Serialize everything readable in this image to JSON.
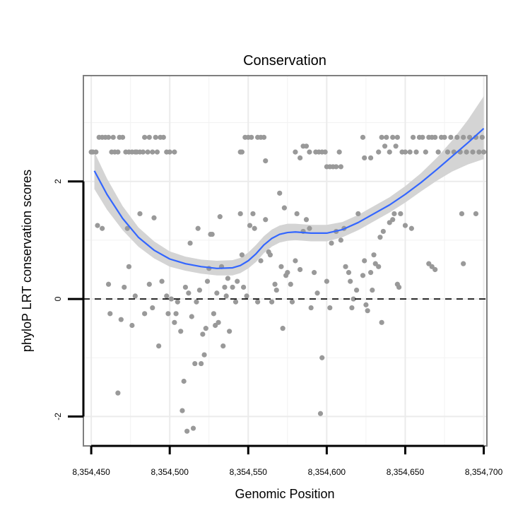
{
  "chart_data": {
    "type": "scatter",
    "title": "Conservation",
    "xlabel": "Genomic Position",
    "ylabel": "phyloP LRT conservation scores",
    "xlim": [
      8354445,
      8354702
    ],
    "ylim": [
      -2.5,
      3.8
    ],
    "x_ticks": [
      8354450,
      8354500,
      8354550,
      8354600,
      8354650,
      8354700
    ],
    "x_tick_labels": [
      "8,354,450",
      "8,354,500",
      "8,354,550",
      "8,354,600",
      "8,354,650",
      "8,354,700"
    ],
    "y_ticks": [
      -2,
      0,
      2
    ],
    "y_tick_labels": [
      "-2",
      "0",
      "2"
    ],
    "x_minor_ticks": [
      8354475,
      8354525,
      8354575,
      8354625,
      8354675
    ],
    "y_minor_ticks": [
      -1,
      1,
      3
    ],
    "reference_line": {
      "y": 0,
      "style": "dashed",
      "color": "#000000"
    },
    "point_color": "#999999",
    "smooth_color": "#3366ff",
    "ribbon_color": "#d4d4d4",
    "points": [
      [
        8354450,
        2.5
      ],
      [
        8354451,
        2.5
      ],
      [
        8354453,
        2.5
      ],
      [
        8354455,
        2.75
      ],
      [
        8354457,
        2.75
      ],
      [
        8354459,
        2.75
      ],
      [
        8354461,
        2.75
      ],
      [
        8354463,
        2.5
      ],
      [
        8354464,
        2.75
      ],
      [
        8354465,
        2.5
      ],
      [
        8354467,
        2.5
      ],
      [
        8354468,
        2.75
      ],
      [
        8354470,
        2.75
      ],
      [
        8354472,
        2.5
      ],
      [
        8354474,
        2.5
      ],
      [
        8354476,
        2.5
      ],
      [
        8354478,
        2.5
      ],
      [
        8354479,
        2.5
      ],
      [
        8354481,
        2.5
      ],
      [
        8354483,
        2.5
      ],
      [
        8354484,
        2.75
      ],
      [
        8354486,
        2.5
      ],
      [
        8354487,
        2.75
      ],
      [
        8354489,
        2.5
      ],
      [
        8354491,
        2.75
      ],
      [
        8354492,
        2.5
      ],
      [
        8354494,
        2.75
      ],
      [
        8354496,
        2.75
      ],
      [
        8354498,
        2.5
      ],
      [
        8354500,
        2.5
      ],
      [
        8354503,
        2.5
      ],
      [
        8354545,
        2.5
      ],
      [
        8354546,
        2.5
      ],
      [
        8354548,
        2.75
      ],
      [
        8354550,
        2.75
      ],
      [
        8354552,
        2.75
      ],
      [
        8354556,
        2.75
      ],
      [
        8354558,
        2.75
      ],
      [
        8354560,
        2.75
      ],
      [
        8354561,
        2.35
      ],
      [
        8354580,
        2.5
      ],
      [
        8354583,
        2.4
      ],
      [
        8354585,
        2.6
      ],
      [
        8354587,
        2.6
      ],
      [
        8354589,
        2.5
      ],
      [
        8354593,
        2.5
      ],
      [
        8354595,
        2.5
      ],
      [
        8354597,
        2.5
      ],
      [
        8354599,
        2.5
      ],
      [
        8354600,
        2.25
      ],
      [
        8354602,
        2.25
      ],
      [
        8354604,
        2.25
      ],
      [
        8354606,
        2.25
      ],
      [
        8354608,
        2.5
      ],
      [
        8354609,
        2.25
      ],
      [
        8354623,
        2.75
      ],
      [
        8354624,
        2.4
      ],
      [
        8354628,
        2.4
      ],
      [
        8354633,
        2.5
      ],
      [
        8354635,
        2.75
      ],
      [
        8354637,
        2.6
      ],
      [
        8354638,
        2.75
      ],
      [
        8354640,
        2.5
      ],
      [
        8354642,
        2.75
      ],
      [
        8354644,
        2.6
      ],
      [
        8354645,
        2.75
      ],
      [
        8354648,
        2.5
      ],
      [
        8354650,
        2.5
      ],
      [
        8354653,
        2.5
      ],
      [
        8354655,
        2.75
      ],
      [
        8354657,
        2.5
      ],
      [
        8354659,
        2.75
      ],
      [
        8354661,
        2.75
      ],
      [
        8354663,
        2.5
      ],
      [
        8354665,
        2.75
      ],
      [
        8354667,
        2.75
      ],
      [
        8354669,
        2.75
      ],
      [
        8354671,
        2.5
      ],
      [
        8354673,
        2.75
      ],
      [
        8354675,
        2.75
      ],
      [
        8354677,
        2.5
      ],
      [
        8354679,
        2.75
      ],
      [
        8354681,
        2.5
      ],
      [
        8354683,
        2.75
      ],
      [
        8354685,
        2.5
      ],
      [
        8354687,
        2.75
      ],
      [
        8354689,
        2.5
      ],
      [
        8354691,
        2.75
      ],
      [
        8354693,
        2.5
      ],
      [
        8354695,
        2.75
      ],
      [
        8354697,
        2.5
      ],
      [
        8354699,
        2.75
      ],
      [
        8354700,
        2.5
      ],
      [
        8354454,
        1.25
      ],
      [
        8354457,
        1.2
      ],
      [
        8354461,
        0.25
      ],
      [
        8354462,
        -0.25
      ],
      [
        8354467,
        -1.6
      ],
      [
        8354469,
        -0.35
      ],
      [
        8354471,
        0.2
      ],
      [
        8354473,
        1.2
      ],
      [
        8354474,
        0.55
      ],
      [
        8354476,
        -0.45
      ],
      [
        8354478,
        0.05
      ],
      [
        8354481,
        1.45
      ],
      [
        8354484,
        -0.25
      ],
      [
        8354487,
        0.25
      ],
      [
        8354489,
        -0.15
      ],
      [
        8354490,
        1.38
      ],
      [
        8354493,
        -0.8
      ],
      [
        8354495,
        0.3
      ],
      [
        8354498,
        0.05
      ],
      [
        8354499,
        -0.25
      ],
      [
        8354501,
        0
      ],
      [
        8354503,
        -0.4
      ],
      [
        8354504,
        -0.25
      ],
      [
        8354505,
        -0.05
      ],
      [
        8354507,
        -0.55
      ],
      [
        8354508,
        -1.9
      ],
      [
        8354509,
        -1.4
      ],
      [
        8354510,
        0.2
      ],
      [
        8354511,
        -2.25
      ],
      [
        8354512,
        0.1
      ],
      [
        8354513,
        0.95
      ],
      [
        8354514,
        -0.3
      ],
      [
        8354515,
        -2.2
      ],
      [
        8354516,
        -1.1
      ],
      [
        8354517,
        -0.05
      ],
      [
        8354518,
        1.2
      ],
      [
        8354519,
        0.15
      ],
      [
        8354520,
        -1.1
      ],
      [
        8354521,
        -0.6
      ],
      [
        8354522,
        -0.95
      ],
      [
        8354523,
        -0.5
      ],
      [
        8354524,
        0.3
      ],
      [
        8354525,
        0.52
      ],
      [
        8354526,
        1.1
      ],
      [
        8354527,
        1.1
      ],
      [
        8354528,
        -0.25
      ],
      [
        8354529,
        -0.45
      ],
      [
        8354530,
        0.1
      ],
      [
        8354531,
        -0.4
      ],
      [
        8354532,
        1.4
      ],
      [
        8354533,
        0.55
      ],
      [
        8354534,
        -0.8
      ],
      [
        8354535,
        0.2
      ],
      [
        8354536,
        0.05
      ],
      [
        8354537,
        0.35
      ],
      [
        8354538,
        -0.55
      ],
      [
        8354540,
        0.2
      ],
      [
        8354542,
        -0.05
      ],
      [
        8354543,
        0.3
      ],
      [
        8354545,
        1.45
      ],
      [
        8354546,
        0.75
      ],
      [
        8354547,
        0.2
      ],
      [
        8354549,
        0.05
      ],
      [
        8354551,
        1.25
      ],
      [
        8354553,
        1.45
      ],
      [
        8354554,
        1.2
      ],
      [
        8354556,
        -0.05
      ],
      [
        8354558,
        0.65
      ],
      [
        8354561,
        1.35
      ],
      [
        8354563,
        0.8
      ],
      [
        8354564,
        0.75
      ],
      [
        8354565,
        -0.05
      ],
      [
        8354567,
        0.25
      ],
      [
        8354568,
        0.15
      ],
      [
        8354570,
        1.8
      ],
      [
        8354571,
        0.55
      ],
      [
        8354572,
        -0.5
      ],
      [
        8354573,
        1.55
      ],
      [
        8354574,
        0.4
      ],
      [
        8354575,
        0.45
      ],
      [
        8354577,
        0.25
      ],
      [
        8354578,
        -0.05
      ],
      [
        8354580,
        0.65
      ],
      [
        8354581,
        1.45
      ],
      [
        8354583,
        0.5
      ],
      [
        8354585,
        1.15
      ],
      [
        8354587,
        1.35
      ],
      [
        8354589,
        1.2
      ],
      [
        8354590,
        -0.15
      ],
      [
        8354592,
        0.45
      ],
      [
        8354594,
        0.1
      ],
      [
        8354596,
        -1.95
      ],
      [
        8354597,
        -1.0
      ],
      [
        8354600,
        0.3
      ],
      [
        8354602,
        -0.15
      ],
      [
        8354603,
        0.95
      ],
      [
        8354606,
        1.15
      ],
      [
        8354609,
        1.0
      ],
      [
        8354611,
        1.2
      ],
      [
        8354612,
        0.55
      ],
      [
        8354614,
        0.45
      ],
      [
        8354615,
        0.3
      ],
      [
        8354616,
        -0.15
      ],
      [
        8354617,
        0
      ],
      [
        8354619,
        0.15
      ],
      [
        8354620,
        1.45
      ],
      [
        8354623,
        0.4
      ],
      [
        8354624,
        0.65
      ],
      [
        8354625,
        -0.1
      ],
      [
        8354626,
        -0.2
      ],
      [
        8354628,
        0.45
      ],
      [
        8354629,
        0.15
      ],
      [
        8354630,
        0.75
      ],
      [
        8354631,
        0.6
      ],
      [
        8354633,
        0.55
      ],
      [
        8354634,
        1.05
      ],
      [
        8354635,
        -0.4
      ],
      [
        8354636,
        1.15
      ],
      [
        8354640,
        1.3
      ],
      [
        8354642,
        1.35
      ],
      [
        8354643,
        1.45
      ],
      [
        8354645,
        0.25
      ],
      [
        8354646,
        0.2
      ],
      [
        8354647,
        1.45
      ],
      [
        8354650,
        1.25
      ],
      [
        8354654,
        1.2
      ],
      [
        8354665,
        0.6
      ],
      [
        8354667,
        0.55
      ],
      [
        8354669,
        0.5
      ],
      [
        8354686,
        1.45
      ],
      [
        8354687,
        0.6
      ],
      [
        8354695,
        1.45
      ]
    ],
    "smooth_curve": [
      [
        8354452,
        2.18
      ],
      [
        8354460,
        1.78
      ],
      [
        8354470,
        1.37
      ],
      [
        8354480,
        1.05
      ],
      [
        8354490,
        0.83
      ],
      [
        8354500,
        0.68
      ],
      [
        8354510,
        0.6
      ],
      [
        8354520,
        0.55
      ],
      [
        8354530,
        0.52
      ],
      [
        8354540,
        0.53
      ],
      [
        8354545,
        0.57
      ],
      [
        8354550,
        0.65
      ],
      [
        8354555,
        0.77
      ],
      [
        8354560,
        0.92
      ],
      [
        8354565,
        1.03
      ],
      [
        8354570,
        1.1
      ],
      [
        8354575,
        1.13
      ],
      [
        8354580,
        1.14
      ],
      [
        8354590,
        1.12
      ],
      [
        8354600,
        1.12
      ],
      [
        8354610,
        1.18
      ],
      [
        8354620,
        1.3
      ],
      [
        8354630,
        1.45
      ],
      [
        8354640,
        1.6
      ],
      [
        8354650,
        1.78
      ],
      [
        8354660,
        1.98
      ],
      [
        8354670,
        2.2
      ],
      [
        8354680,
        2.43
      ],
      [
        8354690,
        2.66
      ],
      [
        8354700,
        2.9
      ]
    ],
    "ribbon_upper": [
      [
        8354452,
        2.5
      ],
      [
        8354460,
        2.05
      ],
      [
        8354470,
        1.58
      ],
      [
        8354480,
        1.22
      ],
      [
        8354490,
        0.98
      ],
      [
        8354500,
        0.81
      ],
      [
        8354510,
        0.72
      ],
      [
        8354520,
        0.67
      ],
      [
        8354530,
        0.65
      ],
      [
        8354540,
        0.66
      ],
      [
        8354545,
        0.7
      ],
      [
        8354550,
        0.79
      ],
      [
        8354555,
        0.92
      ],
      [
        8354560,
        1.07
      ],
      [
        8354565,
        1.18
      ],
      [
        8354570,
        1.25
      ],
      [
        8354575,
        1.28
      ],
      [
        8354580,
        1.28
      ],
      [
        8354590,
        1.26
      ],
      [
        8354600,
        1.26
      ],
      [
        8354610,
        1.31
      ],
      [
        8354620,
        1.43
      ],
      [
        8354630,
        1.58
      ],
      [
        8354640,
        1.73
      ],
      [
        8354650,
        1.92
      ],
      [
        8354660,
        2.14
      ],
      [
        8354670,
        2.4
      ],
      [
        8354680,
        2.7
      ],
      [
        8354690,
        3.05
      ],
      [
        8354700,
        3.45
      ]
    ],
    "ribbon_lower": [
      [
        8354452,
        1.87
      ],
      [
        8354460,
        1.52
      ],
      [
        8354470,
        1.17
      ],
      [
        8354480,
        0.89
      ],
      [
        8354490,
        0.69
      ],
      [
        8354500,
        0.55
      ],
      [
        8354510,
        0.48
      ],
      [
        8354520,
        0.43
      ],
      [
        8354530,
        0.4
      ],
      [
        8354540,
        0.4
      ],
      [
        8354545,
        0.44
      ],
      [
        8354550,
        0.52
      ],
      [
        8354555,
        0.63
      ],
      [
        8354560,
        0.78
      ],
      [
        8354565,
        0.89
      ],
      [
        8354570,
        0.96
      ],
      [
        8354575,
        0.99
      ],
      [
        8354580,
        1.0
      ],
      [
        8354590,
        0.98
      ],
      [
        8354600,
        0.98
      ],
      [
        8354610,
        1.05
      ],
      [
        8354620,
        1.17
      ],
      [
        8354630,
        1.32
      ],
      [
        8354640,
        1.47
      ],
      [
        8354650,
        1.64
      ],
      [
        8354660,
        1.83
      ],
      [
        8354670,
        2.01
      ],
      [
        8354680,
        2.17
      ],
      [
        8354690,
        2.29
      ],
      [
        8354700,
        2.38
      ]
    ]
  }
}
